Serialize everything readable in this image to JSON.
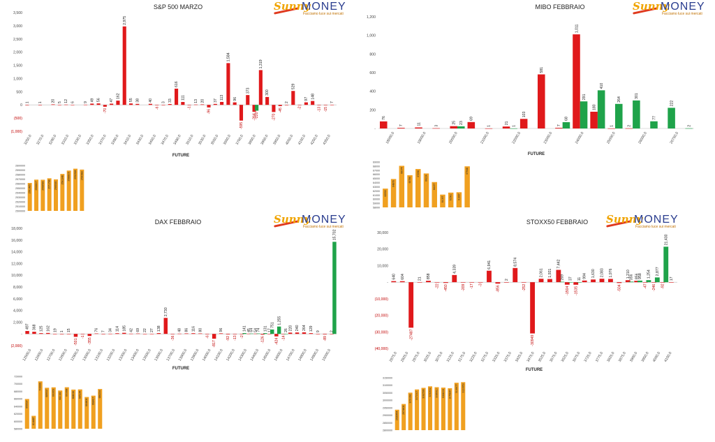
{
  "brand": {
    "name": "MONEY",
    "prefix": "Sunny",
    "tagline": "Facciamo luce sui mercati"
  },
  "colors": {
    "positive": "#1fa34a",
    "negative": "#e0191b",
    "volume": "#f0a020",
    "axis": "#bbbbbb"
  },
  "chart_data": [
    {
      "type": "bar",
      "title": "S&P 500 MARZO",
      "xlabel": "FUTURE",
      "ylim": [
        -1000,
        3500
      ],
      "yticks": [
        -1000,
        -500,
        0,
        500,
        1000,
        1500,
        2000,
        2500,
        3000,
        3500
      ],
      "ytick_labels": [
        "(1,000)",
        "(500)",
        "0",
        "500",
        "1,000",
        "1,500",
        "2,000",
        "2,500",
        "3,000",
        "3,500"
      ],
      "categories": [
        "3250,0",
        "3260,0",
        "3270,0",
        "3280,0",
        "3290,0",
        "3300,0",
        "3310,0",
        "3320,0",
        "3330,0",
        "3340,0",
        "3350,0",
        "3360,0",
        "3370,0",
        "3380,0",
        "3390,0",
        "3400,0",
        "3410,0",
        "3420,0",
        "3430,0",
        "3440,0",
        "3450,0",
        "3460,0",
        "3470,0",
        "3480,0",
        "3490,0",
        "3500,0",
        "3510,0",
        "3520,0",
        "3530,0",
        "3540,0",
        "3550,0",
        "3560,0",
        "3600,0",
        "3650,0",
        "3700,0",
        "3750,0",
        "3800,0",
        "3850,0",
        "3900,0",
        "3950,0",
        "4000,0",
        "4050,0",
        "4100,0",
        "4150,0",
        "4200,0",
        "4250,0",
        "4300,0",
        "4350,0"
      ],
      "xtick_labels": [
        "3250,0",
        "3270,0",
        "3290,0",
        "3310,0",
        "3330,0",
        "3350,0",
        "3370,0",
        "3390,0",
        "3410,0",
        "3430,0",
        "3450,0",
        "3470,0",
        "3490,0",
        "3510,0",
        "3530,0",
        "3550,0",
        "3600,0",
        "3700,0",
        "3800,0",
        "3900,0",
        "3950,0",
        "4050,0",
        "4150,0",
        "4250,0",
        "4350,0"
      ],
      "series": [
        {
          "name": "",
          "values": [
            1,
            0,
            1,
            0,
            20,
            5,
            12,
            6,
            0,
            9,
            49,
            56,
            -70,
            47,
            162,
            2975,
            55,
            38,
            0,
            40,
            -6,
            3,
            33,
            616,
            111,
            -1,
            13,
            20,
            -96,
            37,
            113,
            1584,
            96,
            -595,
            373,
            -264,
            1319,
            300,
            -270,
            -45,
            2,
            529,
            -2,
            97,
            148,
            -13,
            -15,
            7
          ]
        },
        {
          "name": "",
          "values": [
            0,
            0,
            0,
            0,
            0,
            0,
            0,
            0,
            0,
            0,
            0,
            0,
            0,
            0,
            0,
            0,
            0,
            0,
            0,
            0,
            0,
            0,
            0,
            0,
            0,
            0,
            0,
            0,
            0,
            0,
            0,
            0,
            0,
            0,
            0,
            -220,
            0,
            0,
            0,
            0,
            0,
            0,
            0,
            0,
            0,
            0,
            0,
            0
          ]
        }
      ],
      "volume": {
        "values": [
          2561485,
          2568807,
          2568583,
          2571788,
          2569380,
          2581348,
          2588805,
          2592928,
          2590982
        ],
        "ylim": [
          2500000,
          2600000
        ],
        "yticks": [
          "2600000",
          "2590000",
          "2580000",
          "2570000",
          "2560000",
          "2550000",
          "2540000",
          "2530000",
          "2520000",
          "2510000",
          "2500000"
        ]
      }
    },
    {
      "type": "bar",
      "title": "MIBO FEBBRAIO",
      "xlabel": "FUTURE",
      "ylim": [
        0,
        1200
      ],
      "yticks": [
        0,
        200,
        400,
        600,
        800,
        1000,
        1200
      ],
      "ytick_labels": [
        "-",
        "200",
        "400",
        "600",
        "800",
        "1,000",
        "1,200"
      ],
      "xtick_labels": [
        "18000,0",
        "19000,0",
        "20000,0",
        "21000,0",
        "22000,0",
        "23000,0",
        "24000,0",
        "25000,0",
        "26000,0",
        "20750,0"
      ],
      "groups": [
        "18000",
        "18500",
        "19000",
        "19500",
        "20000",
        "20500",
        "21000",
        "21500",
        "22000",
        "22500",
        "23000",
        "23500",
        "24000",
        "24500",
        "25000",
        "25500",
        "26000",
        "26500"
      ],
      "series": [
        {
          "name": "",
          "values": [
            76,
            7,
            11,
            3,
            25,
            69,
            1,
            21,
            103,
            581,
            7,
            1011,
            180,
            1,
            2,
            0,
            0,
            0
          ]
        },
        {
          "name": "",
          "values": [
            0,
            0,
            0,
            0,
            23,
            0,
            0,
            1,
            0,
            0,
            68,
            291,
            410,
            264,
            301,
            77,
            222,
            2
          ]
        }
      ],
      "volume": {
        "values": [
          62552,
          64878,
          68074,
          65796,
          67298,
          66224,
          64137,
          61097,
          61581,
          61667,
          67948
        ],
        "ylim": [
          58000,
          69000
        ],
        "yticks": [
          "69000",
          "68000",
          "67000",
          "66000",
          "65000",
          "64000",
          "63000",
          "62000",
          "61000",
          "60000",
          "59000",
          "58000"
        ]
      }
    },
    {
      "type": "bar",
      "title": "DAX FEBBRAIO",
      "xlabel": "FUTURE",
      "ylim": [
        -2000,
        18000
      ],
      "yticks": [
        -2000,
        0,
        2000,
        4000,
        6000,
        8000,
        10000,
        12000,
        14000,
        16000,
        18000
      ],
      "ytick_labels": [
        "(2,000)",
        "-",
        "2,000",
        "4,000",
        "6,000",
        "8,000",
        "10,000",
        "12,000",
        "14,000",
        "16,000",
        "18,000"
      ],
      "xtick_labels": [
        "12500,0",
        "12600,0",
        "12700,0",
        "12800,0",
        "12900,0",
        "13000,0",
        "13100,0",
        "13200,0",
        "13300,0",
        "13400,0",
        "13500,0",
        "13600,0",
        "13700,0",
        "13800,0",
        "13900,0",
        "14000,0",
        "14100,0",
        "14200,0",
        "14300,0",
        "14400,0",
        "14500,0",
        "14600,0",
        "14700,0",
        "14800,0",
        "14900,0",
        "15000,0"
      ],
      "series": [
        {
          "name": "",
          "values": [
            497,
            368,
            125,
            162,
            19,
            1,
            15,
            -501,
            -1,
            -355,
            76,
            7,
            34,
            114,
            185,
            42,
            69,
            22,
            27,
            138,
            2730,
            -36,
            48,
            86,
            116,
            80,
            -6,
            -817,
            96,
            -92,
            -13,
            -2,
            45,
            54,
            -126,
            17,
            -424,
            -14,
            220,
            240,
            264,
            129,
            9,
            -89,
            2
          ]
        },
        {
          "name": "",
          "values": [
            0,
            0,
            0,
            0,
            0,
            0,
            0,
            0,
            0,
            0,
            0,
            0,
            0,
            0,
            0,
            0,
            0,
            0,
            0,
            0,
            0,
            0,
            0,
            0,
            0,
            0,
            0,
            0,
            0,
            0,
            0,
            141,
            64,
            74,
            131,
            751,
            1255,
            26,
            0,
            0,
            0,
            0,
            0,
            0,
            15702
          ]
        }
      ],
      "volume": {
        "values": [
          659537,
          614487,
          706666,
          689537,
          690653,
          682182,
          690898,
          684638,
          685144,
          664808,
          668417,
          686234
        ],
        "ylim": [
          580000,
          720000
        ],
        "yticks": [
          "720000",
          "700000",
          "680000",
          "660000",
          "640000",
          "620000",
          "600000",
          "580000"
        ]
      }
    },
    {
      "type": "bar",
      "title": "STOXX50 FEBBRAIO",
      "xlabel": "FUTURE",
      "ylim": [
        -40000,
        30000
      ],
      "yticks": [
        -40000,
        -30000,
        -20000,
        -10000,
        0,
        10000,
        20000,
        30000
      ],
      "ytick_labels": [
        "(40,000)",
        "(30,000)",
        "(20,000)",
        "(10,000)",
        "-",
        "10,000",
        "20,000",
        "30,000"
      ],
      "xtick_labels": [
        "2875,0",
        "2925,0",
        "2975,0",
        "3025,0",
        "3075,0",
        "3125,0",
        "3175,0",
        "3225,0",
        "3275,0",
        "3325,0",
        "3375,0",
        "3425,0",
        "3475,0",
        "3525,0",
        "3575,0",
        "3625,0",
        "3675,0",
        "3725,0",
        "3775,0",
        "3825,0",
        "3875,0",
        "3900,0",
        "3950,0",
        "4000,0",
        "4100,0"
      ],
      "series": [
        {
          "name": "",
          "values": [
            640,
            604,
            -27487,
            21,
            858,
            -22,
            -450,
            4339,
            -209,
            -17,
            -3,
            6941,
            -856,
            2,
            8574,
            -252,
            -30949,
            2061,
            1921,
            7442,
            -1504,
            -1535,
            994,
            1630,
            2083,
            1976,
            -504,
            1210,
            856,
            -47,
            -246,
            -92,
            17
          ]
        },
        {
          "name": "",
          "values": [
            0,
            0,
            0,
            0,
            0,
            0,
            0,
            0,
            0,
            0,
            0,
            0,
            0,
            0,
            0,
            0,
            0,
            0,
            0,
            269,
            37,
            11,
            0,
            0,
            0,
            0,
            0,
            356,
            958,
            1254,
            2877,
            21430,
            0
          ]
        }
      ],
      "volume": {
        "values": [
          2936454,
          2974608,
          3050392,
          3071917,
          3082599,
          3092632,
          3086910,
          3084206,
          3079847,
          3116677,
          3120653
        ],
        "ylim": [
          2800000,
          3150000
        ],
        "yticks": [
          "3150000",
          "3100000",
          "3050000",
          "3000000",
          "2950000",
          "2900000",
          "2850000",
          "2800000"
        ]
      }
    }
  ]
}
